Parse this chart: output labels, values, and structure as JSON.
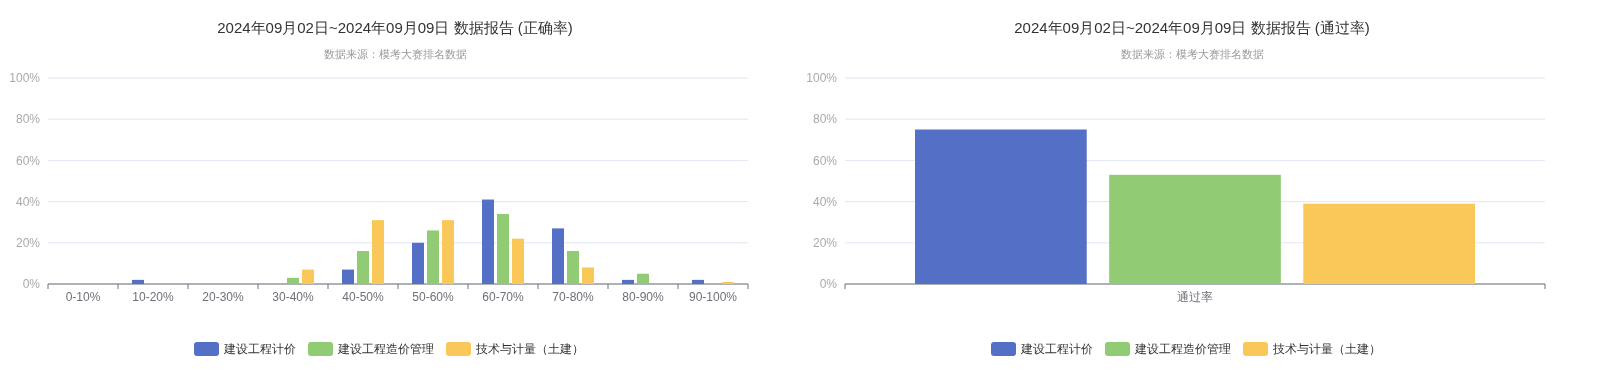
{
  "chart_data": [
    {
      "type": "bar",
      "title": "2024年09月02日~2024年09月09日 数据报告 (正确率)",
      "subtitle": "数据来源：模考大赛排名数据",
      "categories": [
        "0-10%",
        "10-20%",
        "20-30%",
        "30-40%",
        "40-50%",
        "50-60%",
        "60-70%",
        "70-80%",
        "80-90%",
        "90-100%"
      ],
      "series": [
        {
          "name": "建设工程计价",
          "color": "#5470c6",
          "values": [
            0,
            2,
            0,
            0,
            7,
            20,
            41,
            27,
            2,
            2
          ]
        },
        {
          "name": "建设工程造价管理",
          "color": "#91cc75",
          "values": [
            0,
            0,
            0,
            3,
            16,
            26,
            34,
            16,
            5,
            0
          ]
        },
        {
          "name": "技术与计量（土建）",
          "color": "#fac858",
          "values": [
            0,
            0,
            0,
            7,
            31,
            31,
            22,
            8,
            0,
            1
          ]
        }
      ],
      "ylim": [
        0,
        100
      ],
      "yticks": [
        {
          "value": 0,
          "label": "0%"
        },
        {
          "value": 20,
          "label": "20%"
        },
        {
          "value": 40,
          "label": "40%"
        },
        {
          "value": 60,
          "label": "60%"
        },
        {
          "value": 80,
          "label": "80%"
        },
        {
          "value": 100,
          "label": "100%"
        }
      ],
      "grid": "y",
      "legend": "bottom"
    },
    {
      "type": "bar",
      "title": "2024年09月02日~2024年09月09日 数据报告 (通过率)",
      "subtitle": "数据来源：模考大赛排名数据",
      "categories": [
        "通过率"
      ],
      "series": [
        {
          "name": "建设工程计价",
          "color": "#5470c6",
          "values": [
            75
          ]
        },
        {
          "name": "建设工程造价管理",
          "color": "#91cc75",
          "values": [
            53
          ]
        },
        {
          "name": "技术与计量（土建）",
          "color": "#fac858",
          "values": [
            39
          ]
        }
      ],
      "ylim": [
        0,
        100
      ],
      "yticks": [
        {
          "value": 0,
          "label": "0%"
        },
        {
          "value": 20,
          "label": "20%"
        },
        {
          "value": 40,
          "label": "40%"
        },
        {
          "value": 60,
          "label": "60%"
        },
        {
          "value": 80,
          "label": "80%"
        },
        {
          "value": 100,
          "label": "100%"
        }
      ],
      "grid": "y",
      "legend": "bottom"
    }
  ]
}
